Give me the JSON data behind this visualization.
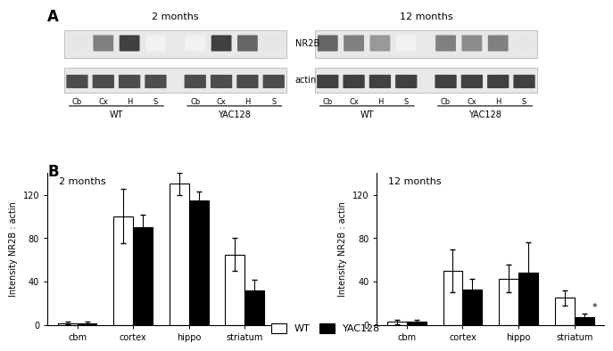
{
  "panel_A_title": "A",
  "panel_B_title": "B",
  "months_2_title": "2 months",
  "months_12_title": "12 months",
  "categories": [
    "cbm",
    "cortex",
    "hippo",
    "striatum"
  ],
  "wt_label": "WT",
  "yac_label": "YAC128",
  "ylabel": "Intensity NR2B : actin",
  "m2_wt_values": [
    2,
    100,
    130,
    65
  ],
  "m2_wt_errors": [
    1,
    25,
    10,
    15
  ],
  "m2_yac_values": [
    2,
    90,
    115,
    32
  ],
  "m2_yac_errors": [
    1,
    12,
    8,
    10
  ],
  "m12_wt_values": [
    3,
    50,
    43,
    25
  ],
  "m12_wt_errors": [
    2,
    20,
    13,
    7
  ],
  "m12_yac_values": [
    3,
    33,
    48,
    7
  ],
  "m12_yac_errors": [
    2,
    10,
    28,
    4
  ],
  "ylim_2": [
    0,
    140
  ],
  "ylim_12": [
    0,
    140
  ],
  "yticks_2": [
    0,
    40,
    80,
    120
  ],
  "yticks_12": [
    0,
    40,
    80,
    120
  ],
  "bar_width": 0.35,
  "wt_color": "#ffffff",
  "yac_color": "#000000",
  "edge_color": "#000000",
  "wb_labels_2months": [
    "NR2B",
    "actin"
  ],
  "lane_labels": [
    "Cb",
    "Cx",
    "H",
    "S"
  ],
  "group_labels_wt": "WT",
  "group_labels_yac": "YAC128",
  "background_color": "#ffffff",
  "asterisk_striatum_12": "*"
}
